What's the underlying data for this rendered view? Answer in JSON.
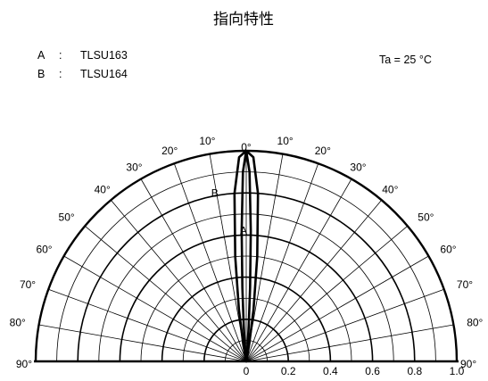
{
  "chart_data": {
    "type": "polar",
    "title": "指向特性",
    "condition": "Ta = 25 °C",
    "legend": [
      {
        "key": "A",
        "sep": ":",
        "name": "TLSU163"
      },
      {
        "key": "B",
        "sep": ":",
        "name": "TLSU164"
      }
    ],
    "angle_labels": [
      "0°",
      "10°",
      "20°",
      "30°",
      "40°",
      "50°",
      "60°",
      "70°",
      "80°",
      "90°"
    ],
    "angle_values_deg": [
      0,
      10,
      20,
      30,
      40,
      50,
      60,
      70,
      80,
      90
    ],
    "radial_tick_labels": [
      "0",
      "0.2",
      "0.4",
      "0.6",
      "0.8",
      "1.0"
    ],
    "radial_values": [
      0,
      0.2,
      0.4,
      0.6,
      0.8,
      1.0
    ],
    "rlim": [
      0,
      1.0
    ],
    "angle_range_deg": [
      -90,
      90
    ],
    "series": [
      {
        "name": "A",
        "angles_deg": [
          0,
          1,
          2,
          3,
          4,
          5,
          6,
          7
        ],
        "values": [
          1.0,
          0.9,
          0.62,
          0.35,
          0.17,
          0.08,
          0.03,
          0.0
        ]
      },
      {
        "name": "B",
        "angles_deg": [
          0,
          2,
          4,
          6,
          8,
          10,
          12
        ],
        "values": [
          1.0,
          0.97,
          0.8,
          0.5,
          0.25,
          0.08,
          0.0
        ]
      }
    ]
  }
}
